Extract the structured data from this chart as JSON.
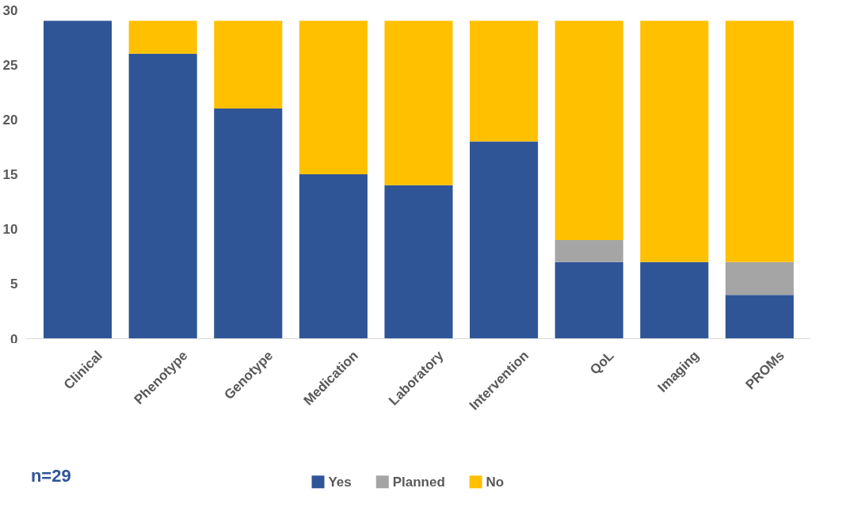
{
  "chart_data": {
    "type": "bar",
    "stacked": true,
    "categories": [
      "Clinical",
      "Phenotype",
      "Genotype",
      "Medication",
      "Laboratory",
      "Intervention",
      "QoL",
      "Imaging",
      "PROMs"
    ],
    "series": [
      {
        "name": "Yes",
        "color": "#2f5597",
        "values": [
          29,
          26,
          21,
          15,
          14,
          18,
          7,
          7,
          4
        ]
      },
      {
        "name": "Planned",
        "color": "#a5a5a5",
        "values": [
          0,
          0,
          0,
          0,
          0,
          0,
          2,
          0,
          3
        ]
      },
      {
        "name": "No",
        "color": "#ffc000",
        "values": [
          0,
          3,
          8,
          14,
          15,
          11,
          20,
          22,
          22
        ]
      }
    ],
    "ylim": [
      0,
      30
    ],
    "yticks": [
      0,
      5,
      10,
      15,
      20,
      25,
      30
    ],
    "grid": false,
    "legend": "bottom",
    "annotations": [
      "n=29"
    ]
  }
}
